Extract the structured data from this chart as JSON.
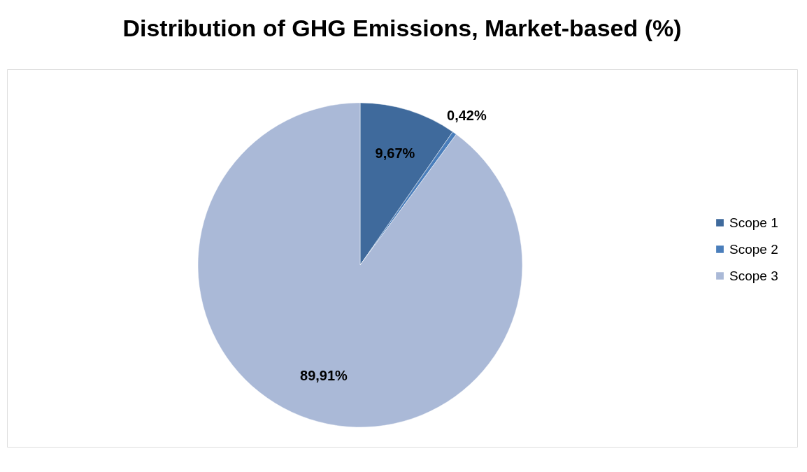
{
  "chart_data": {
    "type": "pie",
    "title": "Distribution of GHG Emissions, Market-based (%)",
    "categories": [
      "Scope 1",
      "Scope 2",
      "Scope 3"
    ],
    "values": [
      9.67,
      0.42,
      89.91
    ],
    "colors": [
      "#3f6a9c",
      "#4a7ebb",
      "#aab9d7"
    ],
    "value_labels": [
      "9,67%",
      "0,42%",
      "89,91%"
    ],
    "legend": "right"
  }
}
